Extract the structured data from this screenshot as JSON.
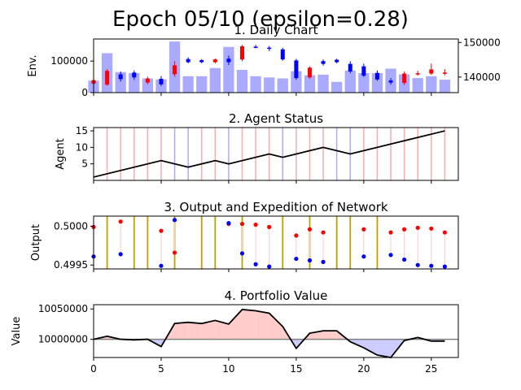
{
  "figure": {
    "suptitle": "Epoch 05/10 (epsilon=0.28)"
  },
  "chart_data": [
    {
      "type": "candlestick",
      "title": "1. Daily Chart",
      "ylabel": "Env.",
      "x": [
        0,
        1,
        2,
        3,
        4,
        5,
        6,
        7,
        8,
        9,
        10,
        11,
        12,
        13,
        14,
        15,
        16,
        17,
        18,
        19,
        20,
        21,
        22,
        23,
        24,
        25,
        26
      ],
      "volume_axis": {
        "ylim": [
          0,
          170000
        ],
        "ticks": [
          "0",
          "100000"
        ]
      },
      "volume": [
        38000,
        125000,
        65000,
        62000,
        45000,
        42000,
        162000,
        52000,
        52000,
        78000,
        145000,
        72000,
        52000,
        48000,
        45000,
        68000,
        55000,
        57000,
        34000,
        70000,
        62000,
        62000,
        76000,
        58000,
        46000,
        52000,
        41000
      ],
      "price_axis": {
        "ylim": [
          135500,
          151000
        ],
        "ticks": [
          "140000",
          "150000"
        ]
      },
      "candles": [
        {
          "x": 0,
          "open": 139100,
          "close": 138100,
          "high": 139700,
          "low": 137400
        },
        {
          "x": 1,
          "open": 141800,
          "close": 137800,
          "high": 142300,
          "low": 137500
        },
        {
          "x": 2,
          "open": 139400,
          "close": 140800,
          "high": 141600,
          "low": 138700
        },
        {
          "x": 3,
          "open": 139900,
          "close": 141300,
          "high": 141900,
          "low": 139200
        },
        {
          "x": 4,
          "open": 139600,
          "close": 138400,
          "high": 140100,
          "low": 137900
        },
        {
          "x": 5,
          "open": 137900,
          "close": 139500,
          "high": 140300,
          "low": 137400
        },
        {
          "x": 6,
          "open": 143400,
          "close": 140800,
          "high": 144600,
          "low": 140100
        },
        {
          "x": 7,
          "open": 144300,
          "close": 145200,
          "high": 145700,
          "low": 144000
        },
        {
          "x": 8,
          "open": 144300,
          "close": 144900,
          "high": 145200,
          "low": 144000
        },
        {
          "x": 9,
          "open": 145100,
          "close": 144300,
          "high": 145400,
          "low": 143900
        },
        {
          "x": 10,
          "open": 144300,
          "close": 145300,
          "high": 146200,
          "low": 143500
        },
        {
          "x": 11,
          "open": 148900,
          "close": 145100,
          "high": 149300,
          "low": 144600
        },
        {
          "x": 12,
          "open": 148800,
          "close": 148800,
          "high": 149300,
          "low": 148300
        },
        {
          "x": 13,
          "open": 148500,
          "close": 148500,
          "high": 149000,
          "low": 147500
        },
        {
          "x": 14,
          "open": 145100,
          "close": 148000,
          "high": 148500,
          "low": 144700
        },
        {
          "x": 15,
          "open": 139700,
          "close": 144800,
          "high": 145300,
          "low": 139200
        },
        {
          "x": 16,
          "open": 142700,
          "close": 139900,
          "high": 143100,
          "low": 139500
        },
        {
          "x": 17,
          "open": 143800,
          "close": 144600,
          "high": 145100,
          "low": 143300
        },
        {
          "x": 18,
          "open": 144300,
          "close": 145000,
          "high": 145300,
          "low": 144000
        },
        {
          "x": 19,
          "open": 141600,
          "close": 143800,
          "high": 144600,
          "low": 141100
        },
        {
          "x": 20,
          "open": 140400,
          "close": 143100,
          "high": 143900,
          "low": 140000
        },
        {
          "x": 21,
          "open": 139300,
          "close": 141200,
          "high": 141900,
          "low": 138900
        },
        {
          "x": 22,
          "open": 138400,
          "close": 139000,
          "high": 139700,
          "low": 137800
        },
        {
          "x": 23,
          "open": 141000,
          "close": 138300,
          "high": 141600,
          "low": 137700
        },
        {
          "x": 24,
          "open": 141100,
          "close": 140900,
          "high": 141800,
          "low": 140400
        },
        {
          "x": 25,
          "open": 142200,
          "close": 141000,
          "high": 143900,
          "low": 140600
        },
        {
          "x": 26,
          "open": 141300,
          "close": 141200,
          "high": 142300,
          "low": 140500
        }
      ],
      "colors": {
        "up": "#0000ff",
        "down": "#ff0000",
        "volume": "#aaaaff"
      }
    },
    {
      "type": "line",
      "title": "2. Agent Status",
      "ylabel": "Agent",
      "ylim": [
        0,
        16
      ],
      "yticks": [
        "5",
        "10",
        "15"
      ],
      "x": [
        0,
        5,
        7,
        9,
        10,
        13,
        14,
        17,
        19,
        26
      ],
      "y": [
        1,
        6,
        4,
        6,
        5,
        8,
        7,
        10,
        8,
        15
      ],
      "action_lines": [
        {
          "x": 1,
          "action": "sell"
        },
        {
          "x": 2,
          "action": "sell"
        },
        {
          "x": 3,
          "action": "sell"
        },
        {
          "x": 4,
          "action": "sell"
        },
        {
          "x": 5,
          "action": "sell"
        },
        {
          "x": 6,
          "action": "buy"
        },
        {
          "x": 7,
          "action": "buy"
        },
        {
          "x": 8,
          "action": "sell"
        },
        {
          "x": 9,
          "action": "sell"
        },
        {
          "x": 10,
          "action": "buy"
        },
        {
          "x": 11,
          "action": "sell"
        },
        {
          "x": 12,
          "action": "sell"
        },
        {
          "x": 13,
          "action": "sell"
        },
        {
          "x": 14,
          "action": "buy"
        },
        {
          "x": 15,
          "action": "sell"
        },
        {
          "x": 16,
          "action": "sell"
        },
        {
          "x": 17,
          "action": "sell"
        },
        {
          "x": 18,
          "action": "buy"
        },
        {
          "x": 19,
          "action": "buy"
        },
        {
          "x": 20,
          "action": "sell"
        },
        {
          "x": 21,
          "action": "sell"
        },
        {
          "x": 22,
          "action": "sell"
        },
        {
          "x": 23,
          "action": "sell"
        },
        {
          "x": 24,
          "action": "sell"
        },
        {
          "x": 25,
          "action": "sell"
        },
        {
          "x": 26,
          "action": "sell"
        }
      ],
      "colors": {
        "line": "#000000",
        "buy": "#aaaaff",
        "sell": "#ffaaaa"
      }
    },
    {
      "type": "scatter",
      "title": "3. Output and Expedition of Network",
      "ylabel": "Output",
      "ylim": [
        0.49945,
        0.50013
      ],
      "yticks": [
        "0.4995",
        "0.5000"
      ],
      "exploration_x": [
        1,
        3,
        4,
        6,
        8,
        9,
        11,
        14,
        16,
        18,
        19,
        21
      ],
      "red_points": [
        {
          "x": 0,
          "y": 0.49999
        },
        {
          "x": 2,
          "y": 0.50006
        },
        {
          "x": 5,
          "y": 0.49994
        },
        {
          "x": 6,
          "y": 0.49966
        },
        {
          "x": 10,
          "y": 0.50003
        },
        {
          "x": 11,
          "y": 0.50003
        },
        {
          "x": 12,
          "y": 0.50002
        },
        {
          "x": 13,
          "y": 0.49999
        },
        {
          "x": 15,
          "y": 0.49988
        },
        {
          "x": 16,
          "y": 0.49996
        },
        {
          "x": 17,
          "y": 0.49992
        },
        {
          "x": 20,
          "y": 0.49996
        },
        {
          "x": 22,
          "y": 0.49992
        },
        {
          "x": 23,
          "y": 0.49996
        },
        {
          "x": 24,
          "y": 0.49998
        },
        {
          "x": 25,
          "y": 0.49997
        },
        {
          "x": 26,
          "y": 0.49992
        }
      ],
      "blue_points": [
        {
          "x": 0,
          "y": 0.49961
        },
        {
          "x": 2,
          "y": 0.49964
        },
        {
          "x": 5,
          "y": 0.49949
        },
        {
          "x": 6,
          "y": 0.50008
        },
        {
          "x": 10,
          "y": 0.50004
        },
        {
          "x": 11,
          "y": 0.49965
        },
        {
          "x": 12,
          "y": 0.49951
        },
        {
          "x": 13,
          "y": 0.49948
        },
        {
          "x": 15,
          "y": 0.49958
        },
        {
          "x": 16,
          "y": 0.49956
        },
        {
          "x": 17,
          "y": 0.49954
        },
        {
          "x": 20,
          "y": 0.49961
        },
        {
          "x": 22,
          "y": 0.49963
        },
        {
          "x": 23,
          "y": 0.49957
        },
        {
          "x": 24,
          "y": 0.4995
        },
        {
          "x": 25,
          "y": 0.49949
        },
        {
          "x": 26,
          "y": 0.49948
        }
      ],
      "colors": {
        "exploration": "#bfa000",
        "red": "#ff0000",
        "blue": "#0000ff",
        "stem": "#ffcccc"
      }
    },
    {
      "type": "area",
      "title": "4. Portfolio Value",
      "ylabel": "Value",
      "xlabel": "",
      "xlim": [
        0,
        27
      ],
      "xticks": [
        "0",
        "5",
        "10",
        "15",
        "20",
        "25"
      ],
      "ylim": [
        9970000,
        10057000
      ],
      "yticks": [
        "10000000",
        "10050000"
      ],
      "baseline": 10000000,
      "x": [
        0,
        1,
        2,
        3,
        4,
        5,
        6,
        7,
        8,
        9,
        10,
        11,
        12,
        13,
        14,
        15,
        16,
        17,
        18,
        19,
        20,
        21,
        22,
        23,
        24,
        25,
        26
      ],
      "y": [
        10000000,
        10005000,
        10000000,
        9999000,
        10000000,
        9988000,
        10026000,
        10028000,
        10026000,
        10031000,
        10025000,
        10049000,
        10047000,
        10043000,
        10021000,
        9985000,
        10010000,
        10014000,
        10014000,
        9996000,
        9986000,
        9974000,
        9970000,
        9998000,
        10003000,
        9997000,
        9997000
      ],
      "colors": {
        "line": "#000000",
        "gain": "#ffcccc",
        "loss": "#ccccff",
        "baseline": "#808080"
      }
    }
  ]
}
